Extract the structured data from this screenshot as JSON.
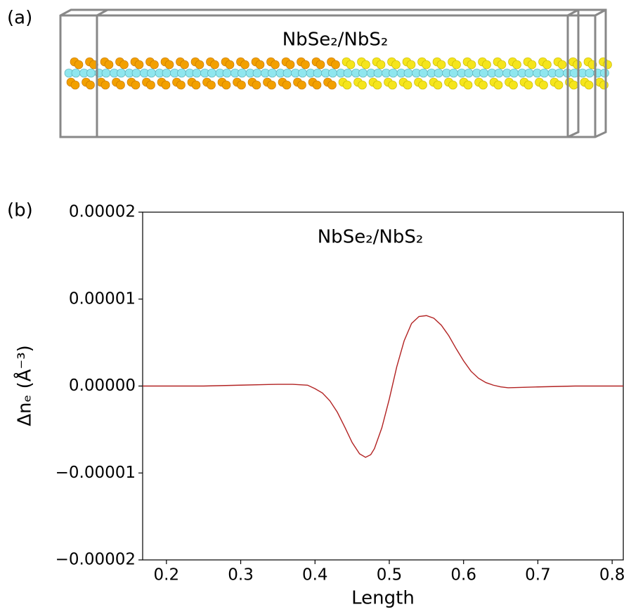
{
  "panel_a": {
    "label": "(a)",
    "title": "NbSe₂/NbS₂"
  },
  "chart_data": {
    "type": "line",
    "panel_label": "(b)",
    "title": "NbSe₂/NbS₂",
    "x_label": "Length",
    "y_label": "Δnₑ (Å⁻³)",
    "x": [
      0.168,
      0.25,
      0.3,
      0.35,
      0.37,
      0.39,
      0.4,
      0.41,
      0.42,
      0.43,
      0.44,
      0.45,
      0.46,
      0.468,
      0.475,
      0.48,
      0.49,
      0.5,
      0.51,
      0.52,
      0.53,
      0.54,
      0.55,
      0.56,
      0.57,
      0.58,
      0.59,
      0.6,
      0.61,
      0.62,
      0.63,
      0.64,
      0.65,
      0.66,
      0.7,
      0.75,
      0.815
    ],
    "series": [
      {
        "color": "#b22222",
        "values": [
          0,
          0,
          1e-07,
          2e-07,
          2e-07,
          1e-07,
          -3e-07,
          -8e-07,
          -1.7e-06,
          -3e-06,
          -4.7e-06,
          -6.5e-06,
          -7.8e-06,
          -8.2e-06,
          -7.9e-06,
          -7.2e-06,
          -4.8e-06,
          -1.5e-06,
          2.2e-06,
          5.2e-06,
          7.2e-06,
          8e-06,
          8.1e-06,
          7.8e-06,
          7e-06,
          5.8e-06,
          4.3e-06,
          2.9e-06,
          1.7e-06,
          9e-07,
          4e-07,
          1e-07,
          -1e-07,
          -2e-07,
          -1e-07,
          0,
          0
        ]
      }
    ],
    "xlim": [
      0.168,
      0.815
    ],
    "ylim": [
      -2e-05,
      2e-05
    ],
    "xticks": [
      0.2,
      0.3,
      0.4,
      0.5,
      0.6,
      0.7,
      0.8
    ],
    "yticks": [
      {
        "value": -2e-05,
        "label": "−0.00002"
      },
      {
        "value": -1e-05,
        "label": "−0.00001"
      },
      {
        "value": 0,
        "label": "0.00000"
      },
      {
        "value": 1e-05,
        "label": "0.00001"
      },
      {
        "value": 2e-05,
        "label": "0.00002"
      }
    ]
  }
}
